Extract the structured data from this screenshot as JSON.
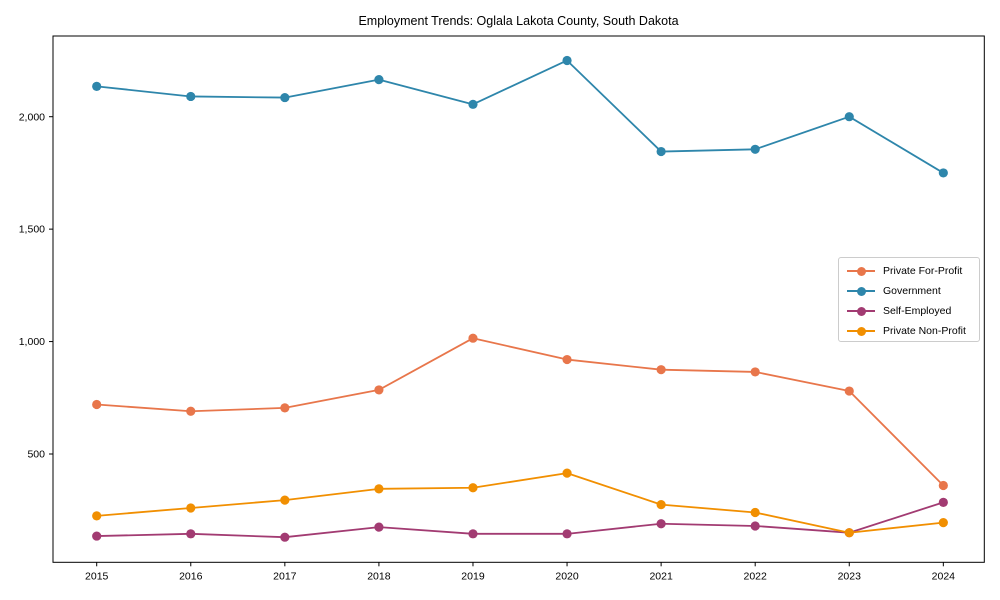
{
  "chart_data": {
    "type": "line",
    "title": "Employment Trends: Oglala Lakota County, South Dakota",
    "x": [
      2015,
      2016,
      2017,
      2018,
      2019,
      2020,
      2021,
      2022,
      2023,
      2024
    ],
    "x_labels": [
      "2015",
      "2016",
      "2017",
      "2018",
      "2019",
      "2020",
      "2021",
      "2022",
      "2023",
      "2024"
    ],
    "series": [
      {
        "name": "Private For-Profit",
        "color": "#E8764B",
        "values": [
          720,
          690,
          705,
          785,
          1015,
          920,
          875,
          865,
          780,
          360
        ]
      },
      {
        "name": "Government",
        "color": "#2E86AB",
        "values": [
          2135,
          2090,
          2085,
          2165,
          2055,
          2250,
          1845,
          1855,
          2000,
          1750
        ]
      },
      {
        "name": "Self-Employed",
        "color": "#A23B72",
        "values": [
          135,
          145,
          130,
          175,
          145,
          145,
          190,
          180,
          150,
          285
        ]
      },
      {
        "name": "Private Non-Profit",
        "color": "#F18F01",
        "values": [
          225,
          260,
          295,
          345,
          350,
          415,
          275,
          240,
          150,
          195
        ]
      }
    ],
    "yticks": {
      "values": [
        500,
        1000,
        1500,
        2000
      ],
      "labels": [
        "500",
        "1,000",
        "1,500",
        "2,000"
      ]
    },
    "ylim": [
      18,
      2360
    ],
    "xlabel": "",
    "ylabel": "",
    "grid": false,
    "legend_position": "center-right",
    "axis_color": "#000000",
    "tick_label_color": "#000000",
    "background_color": "#ffffff"
  }
}
